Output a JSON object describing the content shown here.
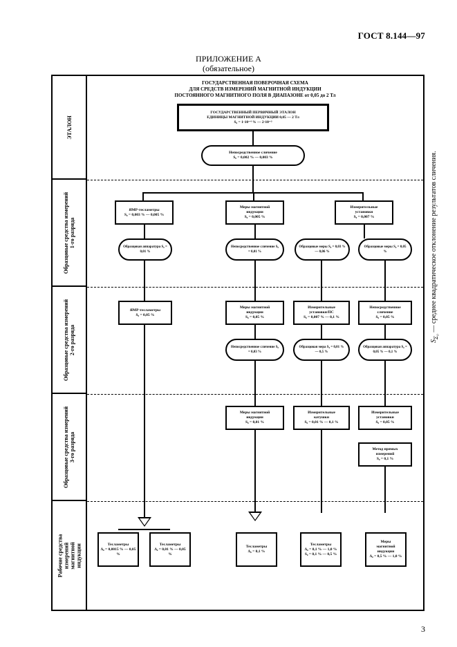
{
  "doc_ref": "ГОСТ 8.144—97",
  "appendix_title": "ПРИЛОЖЕНИЕ А",
  "appendix_sub": "(обязательное)",
  "scheme_title_1": "ГОСУДАРСТВЕННАЯ ПОВЕРОЧНАЯ СХЕМА",
  "scheme_title_2": "ДЛЯ СРЕДСТВ ИЗМЕРЕНИЙ МАГНИТНОЙ ИНДУКЦИИ",
  "scheme_title_3": "ПОСТОЯННОГО МАГНИТНОГО ПОЛЯ В ДИАПАЗОНЕ от 0,05 до 2 Тл",
  "rows": {
    "r0": "ЭТАЛОН",
    "r1": "Образцовые средства измерений\\n1-го разряда",
    "r2": "Образцовые средства измерений\\n2-го разряда",
    "r3": "Образцовые средства измерений\\n3-го разряда",
    "r4": "Рабочие средства\\nизмерений\\nмагнитной\\nиндукции"
  },
  "etalon": {
    "title": "ГОСУДАРСТВЕННЫЙ ПЕРВИЧНЫЙ ЭТАЛОН\\nЕДИНИЦЫ МАГНИТНОЙ ИНДУКЦИИ 0,05 — 2 Тл",
    "val": "S₀ = 1·10⁻⁴ % — 2·10⁻³"
  },
  "methods": {
    "direct": "Непосредственное сличение",
    "m1": "S₀ = 0,002 % — 0,003 %"
  },
  "level1": {
    "a": {
      "t": "ЯМР-тесламетры",
      "v": "S₀ = 0,003 % — 0,005 %"
    },
    "b": {
      "t": "Меры магнитной\\nиндукции",
      "v": "S₀ = 0,005 %"
    },
    "c": {
      "t": "Измерительные\\nустановки",
      "v": "S₀ = 0,007 %"
    }
  },
  "mid_methods": {
    "m2a": "Образцовая аппаратура S₀ = 0,01 %",
    "m2b": "Непосредственное сличение S₀ = 0,01 %",
    "m2c": "Образцовые меры S₀ = 0,03 % — 0,06 %",
    "m2d": "Образцовые меры S₀ = 0,05 %"
  },
  "level2": {
    "a": {
      "t": "Меры магнитной\\nиндукции",
      "v": "S₀ = 0,05 %"
    },
    "b": {
      "t": "ЯМР-тесламетры",
      "v": "S₀ = 0,05 %"
    },
    "c": {
      "t": "Измерительные\\nустановки/ПС",
      "v": "S₀ = 0,007 % — 0,1 %"
    },
    "d": {
      "t": "Непосредственное\\nсличение",
      "v": "S₀ = 0,05 %"
    }
  },
  "mid2": {
    "a": "Непосредственное сличение S₀ = 0,03 %",
    "b": "Образцовая мера S₀ = 0,01 % — 0,5 %",
    "c": "Образцовая аппаратура S₀ = 0,05 % — 0,1 %"
  },
  "level3": {
    "a": {
      "t": "Меры магнитной\\nиндукции",
      "v": "S₀ = 0,01 %"
    },
    "b": {
      "t": "Измерительные\\nкатушки",
      "v": "S₀ = 0,01 % — 0,1 %"
    },
    "c": {
      "t": "Измерительные\\nустановки",
      "v": "S₀ = 0,05 %"
    },
    "d": {
      "t": "Метод прямых\\nизмерений",
      "v": "S₀ = 0,1 %"
    }
  },
  "work": {
    "a": {
      "t": "Тесламетры",
      "v": "Δ₀ = 0,0015 % — 0,05 %"
    },
    "b": {
      "t": "Тесламетры",
      "v": "Δ₀ = 0,01 % — 0,05 %"
    },
    "c": {
      "t": "Тесламетры",
      "v": "Δ₀ = 0,1 %"
    },
    "d": {
      "t": "Тесламетры",
      "v": "Δ₀ = 0,1 % — 1,0 % S₀ = 0,1 % — 0,5 %"
    },
    "e": {
      "t": "Меры\\nмагнитной индукции",
      "v": "Δ₀ = 0,5 % — 1,0 %"
    }
  },
  "caption": "SΣ₀ — среднее квадратическое отклонение результатов сличения.",
  "page_num": "3"
}
